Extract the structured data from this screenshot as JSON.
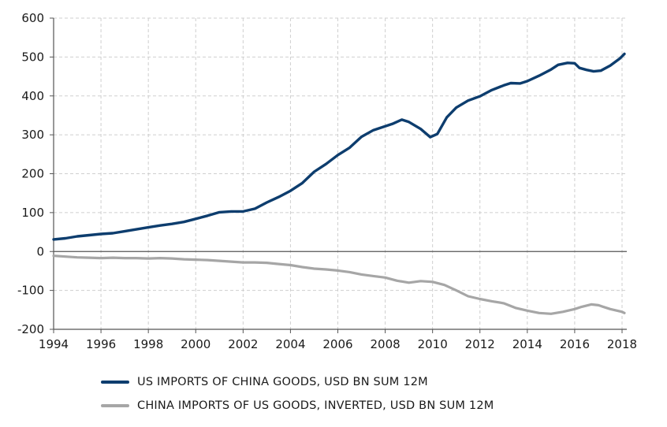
{
  "chart_data": {
    "type": "line",
    "title": "",
    "xlabel": "",
    "ylabel": "",
    "xlim": [
      1994,
      2018.2
    ],
    "ylim": [
      -200,
      600
    ],
    "x_ticks": [
      "1994",
      "1996",
      "1998",
      "2000",
      "2002",
      "2004",
      "2006",
      "2008",
      "2010",
      "2012",
      "2014",
      "2016",
      "2018"
    ],
    "y_ticks": [
      "600",
      "500",
      "400",
      "300",
      "200",
      "100",
      "0",
      "-100",
      "-200"
    ],
    "grid": "dashed",
    "legend_position": "bottom",
    "series": [
      {
        "name": "US IMPORTS OF CHINA GOODS, USD BN SUM 12M",
        "color": "#0d3d6e",
        "x": [
          1994,
          1994.5,
          1995,
          1995.5,
          1996,
          1996.5,
          1997,
          1997.5,
          1998,
          1998.5,
          1999,
          1999.5,
          2000,
          2000.5,
          2001,
          2001.5,
          2002,
          2002.5,
          2003,
          2003.5,
          2004,
          2004.5,
          2005,
          2005.5,
          2006,
          2006.5,
          2007,
          2007.5,
          2008,
          2008.3,
          2008.7,
          2009,
          2009.5,
          2009.9,
          2010.2,
          2010.6,
          2011,
          2011.5,
          2012,
          2012.5,
          2013,
          2013.3,
          2013.7,
          2014,
          2014.5,
          2015,
          2015.3,
          2015.7,
          2016,
          2016.2,
          2016.5,
          2016.8,
          2017.1,
          2017.5,
          2017.9,
          2018.1
        ],
        "values": [
          31,
          34,
          39,
          42,
          45,
          47,
          52,
          57,
          62,
          67,
          71,
          76,
          84,
          92,
          101,
          103,
          103,
          110,
          126,
          140,
          156,
          176,
          205,
          225,
          248,
          267,
          295,
          312,
          322,
          328,
          339,
          333,
          315,
          294,
          302,
          345,
          370,
          388,
          399,
          415,
          427,
          433,
          432,
          438,
          452,
          468,
          480,
          485,
          484,
          472,
          467,
          463,
          465,
          478,
          496,
          508
        ]
      },
      {
        "name": "CHINA IMPORTS OF US GOODS, INVERTED, USD BN SUM 12M",
        "color": "#a6a6a6",
        "x": [
          1994,
          1994.5,
          1995,
          1995.5,
          1996,
          1996.5,
          1997,
          1997.5,
          1998,
          1998.5,
          1999,
          1999.5,
          2000,
          2000.5,
          2001,
          2001.5,
          2002,
          2002.5,
          2003,
          2003.5,
          2004,
          2004.5,
          2005,
          2005.5,
          2006,
          2006.5,
          2007,
          2007.5,
          2008,
          2008.5,
          2009,
          2009.5,
          2010,
          2010.5,
          2011,
          2011.5,
          2012,
          2012.5,
          2013,
          2013.5,
          2014,
          2014.5,
          2015,
          2015.5,
          2016,
          2016.3,
          2016.7,
          2017,
          2017.5,
          2018,
          2018.1
        ],
        "values": [
          -11,
          -13,
          -15,
          -16,
          -17,
          -16,
          -17,
          -17,
          -18,
          -17,
          -18,
          -20,
          -21,
          -22,
          -24,
          -26,
          -28,
          -28,
          -29,
          -32,
          -35,
          -40,
          -44,
          -46,
          -49,
          -53,
          -59,
          -63,
          -67,
          -75,
          -80,
          -76,
          -78,
          -86,
          -100,
          -115,
          -122,
          -128,
          -133,
          -145,
          -152,
          -158,
          -160,
          -155,
          -148,
          -142,
          -136,
          -138,
          -148,
          -155,
          -158
        ]
      }
    ]
  }
}
